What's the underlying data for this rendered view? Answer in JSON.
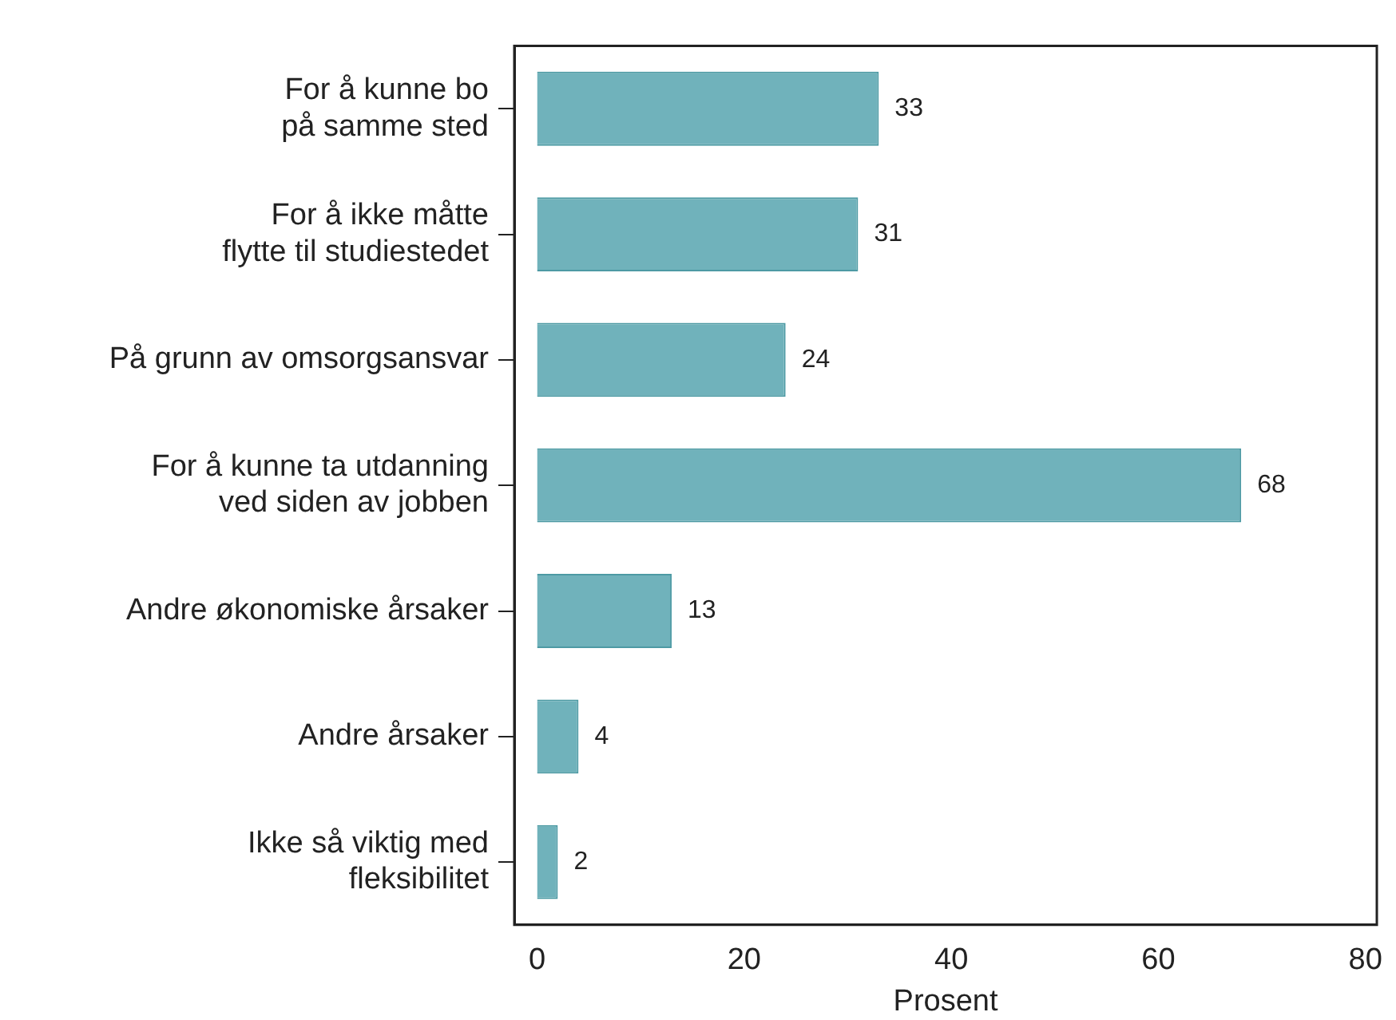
{
  "chart_data": {
    "type": "bar",
    "orientation": "horizontal",
    "xlabel": "Prosent",
    "categories": [
      "For å kunne bo\npå samme sted",
      "For å ikke måtte\nflytte til studiestedet",
      "På grunn av omsorgsansvar",
      "For å kunne ta utdanning\nved siden av jobben",
      "Andre økonomiske årsaker",
      "Andre årsaker",
      "Ikke så viktig med\nfleksibilitet"
    ],
    "values": [
      33,
      31,
      24,
      68,
      13,
      4,
      2
    ],
    "color": "#70b2bb",
    "xlim": [
      -2.2,
      81.1
    ],
    "xticks": [
      0,
      20,
      40,
      60,
      80
    ],
    "data_labels": true,
    "grid": false,
    "legend": false
  }
}
